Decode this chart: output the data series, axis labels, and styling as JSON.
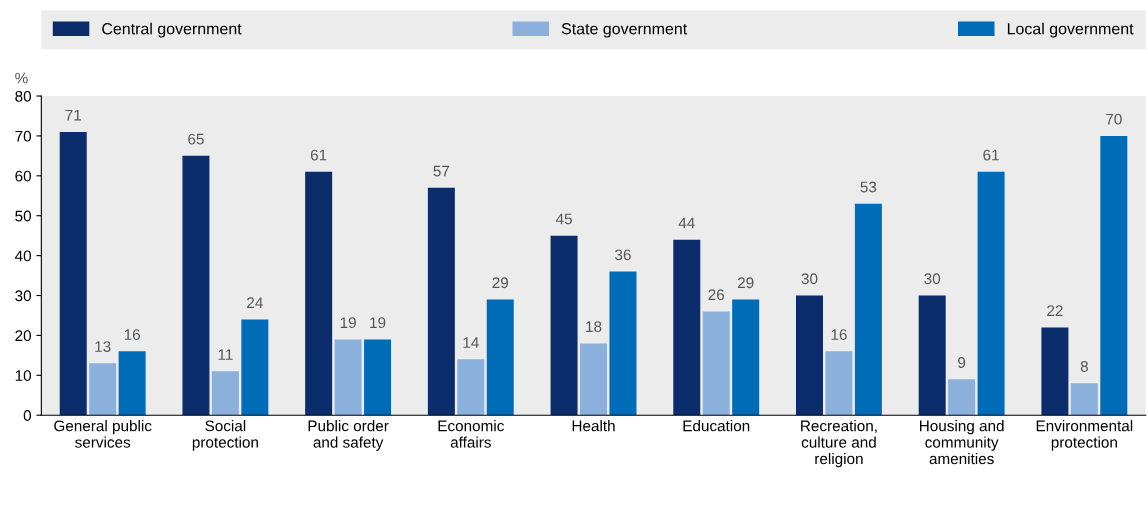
{
  "chart_data": {
    "type": "bar",
    "ylabel": "%",
    "categories": [
      "General public\nservices",
      "Social\nprotection",
      "Public order\nand safety",
      "Economic\naffairs",
      "Health",
      "Education",
      "Recreation,\nculture and\nreligion",
      "Housing and\ncommunity\namenities",
      "Environmental\nprotection"
    ],
    "series": [
      {
        "name": "Central government",
        "color": "#0b2d6b",
        "values": [
          71,
          65,
          61,
          57,
          45,
          44,
          30,
          30,
          22
        ]
      },
      {
        "name": "State government",
        "color": "#8cb0dc",
        "values": [
          13,
          11,
          19,
          14,
          18,
          26,
          16,
          9,
          8
        ]
      },
      {
        "name": "Local government",
        "color": "#006bb6",
        "values": [
          16,
          24,
          19,
          29,
          36,
          29,
          53,
          61,
          70
        ]
      }
    ],
    "ylim": [
      0,
      80
    ],
    "yticks": [
      0,
      10,
      20,
      30,
      40,
      50,
      60,
      70,
      80
    ],
    "data_labels": true,
    "legend": "top",
    "grid": false
  }
}
